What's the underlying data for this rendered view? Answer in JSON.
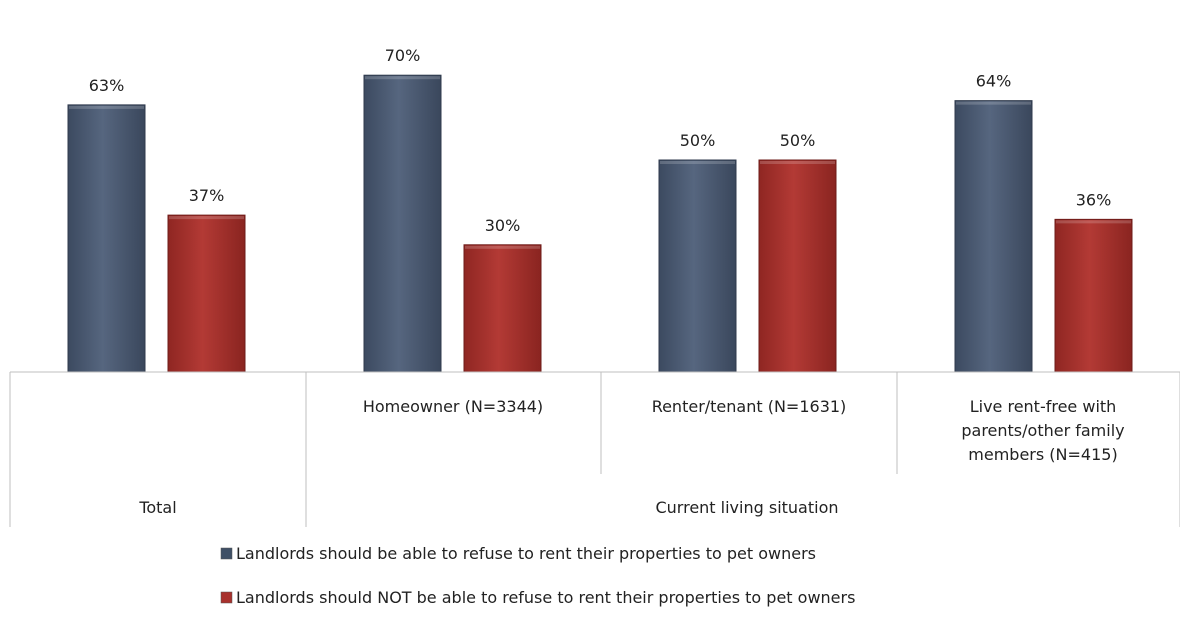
{
  "chart_data": {
    "type": "bar",
    "categories": [
      "Total",
      "Homeowner (N=3344)",
      "Renter/tenant (N=1631)",
      "Live rent-free with parents/other family members (N=415)"
    ],
    "category_lines": [
      [
        ""
      ],
      [
        "Homeowner (N=3344)"
      ],
      [
        "Renter/tenant (N=1631)"
      ],
      [
        "Live rent-free with",
        "parents/other family",
        "members (N=415)"
      ]
    ],
    "groups": [
      {
        "label": "Total",
        "span": 1
      },
      {
        "label": "Current living situation",
        "span": 3
      }
    ],
    "series": [
      {
        "name": "Landlords should be able to refuse to rent their properties to pet owners",
        "values": [
          63,
          70,
          50,
          64
        ],
        "labels": [
          "63%",
          "70%",
          "50%",
          "64%"
        ],
        "color": "#4a5a73"
      },
      {
        "name": "Landlords should NOT be able to refuse to rent their properties to pet owners",
        "values": [
          37,
          30,
          50,
          36
        ],
        "labels": [
          "37%",
          "30%",
          "50%",
          "36%"
        ],
        "color": "#a8312d"
      }
    ],
    "unit": "%",
    "ylim": [
      0,
      75
    ],
    "grid": false,
    "legend_position": "bottom"
  }
}
